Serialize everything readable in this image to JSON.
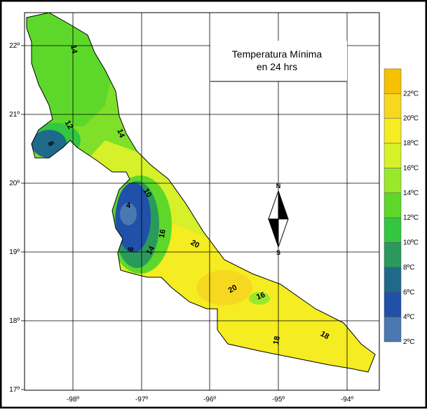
{
  "title": [
    "Temperatura Mínima",
    "en 24 hrs"
  ],
  "latitude_labels": [
    "22º",
    "21º",
    "20º",
    "19º",
    "18º",
    "17º"
  ],
  "longitude_labels": [
    "-98º",
    "-97º",
    "-96º",
    "-95º",
    "-94º"
  ],
  "legend": {
    "labels": [
      "22ºC",
      "20ºC",
      "18ºC",
      "16ºC",
      "14ºC",
      "12ºC",
      "10ºC",
      "8ºC",
      "6ºC",
      "4ºC",
      "2ºC"
    ],
    "colors": [
      "#f6c100",
      "#f7d820",
      "#f5ec22",
      "#d6f02a",
      "#9ae82a",
      "#5dd82a",
      "#33c640",
      "#2a9a5c",
      "#1f6a8a",
      "#2050a8",
      "#4a78b0"
    ]
  },
  "contour_labels": [
    "14",
    "12",
    "14",
    "8",
    "10",
    "4",
    "16",
    "6",
    "14",
    "20",
    "20",
    "16",
    "18",
    "18"
  ],
  "compass": {
    "north": "N",
    "south": "S"
  }
}
